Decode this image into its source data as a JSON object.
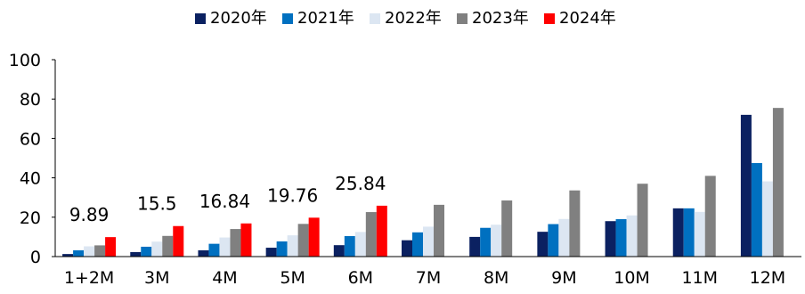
{
  "chart_data": {
    "type": "bar",
    "title": "",
    "xlabel": "",
    "ylabel": "",
    "ylim": [
      0,
      100
    ],
    "yticks": [
      0,
      20,
      40,
      60,
      80,
      100
    ],
    "grid": false,
    "legend_position": "top",
    "categories": [
      "1+2M",
      "3M",
      "4M",
      "5M",
      "6M",
      "7M",
      "8M",
      "9M",
      "10M",
      "11M",
      "12M"
    ],
    "series": [
      {
        "name": "2020年",
        "color": "#0b2161",
        "values": [
          1.3,
          2.3,
          3.2,
          4.5,
          5.8,
          8.3,
          10.0,
          12.6,
          18.0,
          24.5,
          72.0
        ]
      },
      {
        "name": "2021年",
        "color": "#0070c0",
        "values": [
          3.2,
          5.0,
          6.5,
          7.7,
          10.4,
          12.3,
          14.6,
          16.5,
          19.0,
          24.5,
          47.5
        ]
      },
      {
        "name": "2022年",
        "color": "#dce6f2",
        "values": [
          5.2,
          7.6,
          9.7,
          10.8,
          12.5,
          15.2,
          16.2,
          19.1,
          20.9,
          22.7,
          38.2
        ]
      },
      {
        "name": "2023年",
        "color": "#808080",
        "values": [
          5.7,
          10.5,
          14.0,
          16.6,
          22.6,
          26.3,
          28.5,
          33.6,
          37.0,
          41.0,
          75.5
        ]
      },
      {
        "name": "2024年",
        "color": "#ff0000",
        "values": [
          9.89,
          15.5,
          16.84,
          19.76,
          25.84,
          null,
          null,
          null,
          null,
          null,
          null
        ]
      }
    ],
    "data_labels": [
      {
        "series": "2024年",
        "category": "1+2M",
        "text": "9.89"
      },
      {
        "series": "2024年",
        "category": "3M",
        "text": "15.5"
      },
      {
        "series": "2024年",
        "category": "4M",
        "text": "16.84"
      },
      {
        "series": "2024年",
        "category": "5M",
        "text": "19.76"
      },
      {
        "series": "2024年",
        "category": "6M",
        "text": "25.84"
      }
    ]
  }
}
